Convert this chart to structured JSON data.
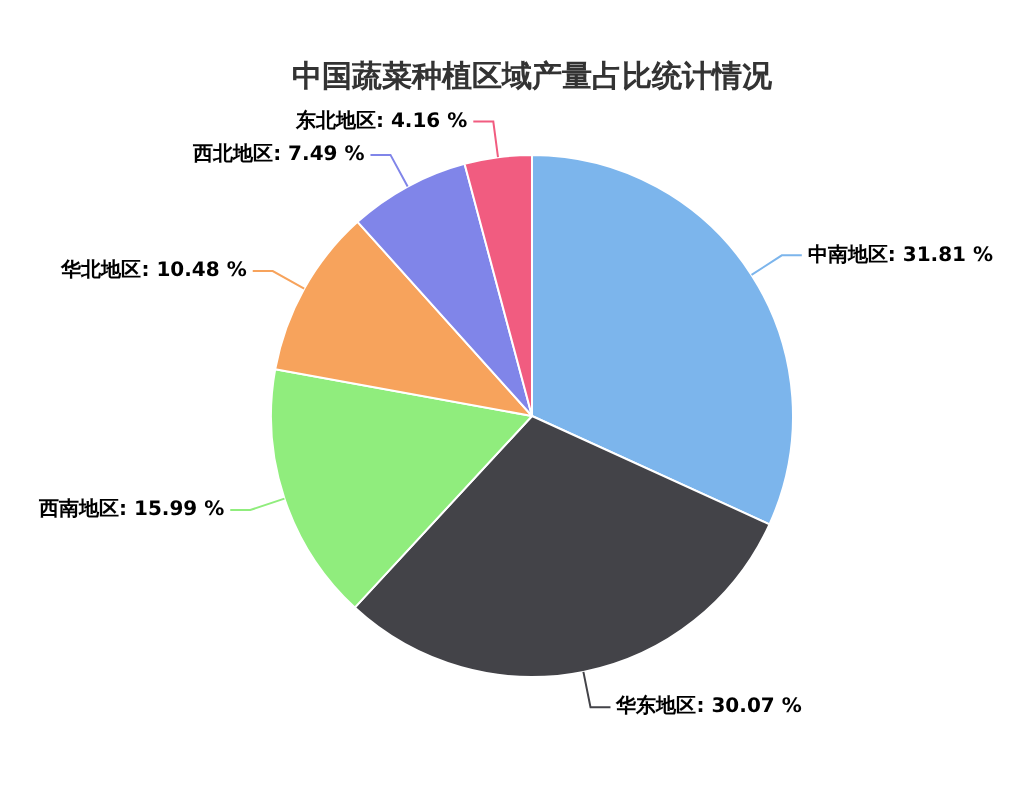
{
  "chart_data": {
    "type": "pie",
    "title": "中国蔬菜种植区域产量占比统计情况",
    "categories": [
      "中南地区",
      "华东地区",
      "西南地区",
      "华北地区",
      "西北地区",
      "东北地区"
    ],
    "values": [
      31.81,
      30.07,
      15.99,
      10.48,
      7.49,
      4.16
    ],
    "value_labels": [
      "31.81 %",
      "30.07 %",
      "15.99 %",
      "10.48 %",
      "7.49 %",
      "4.16 %"
    ],
    "colors": [
      "#7cb5ec",
      "#434348",
      "#90ed7d",
      "#f7a35c",
      "#8085e9",
      "#f15c80"
    ],
    "legend": false
  }
}
